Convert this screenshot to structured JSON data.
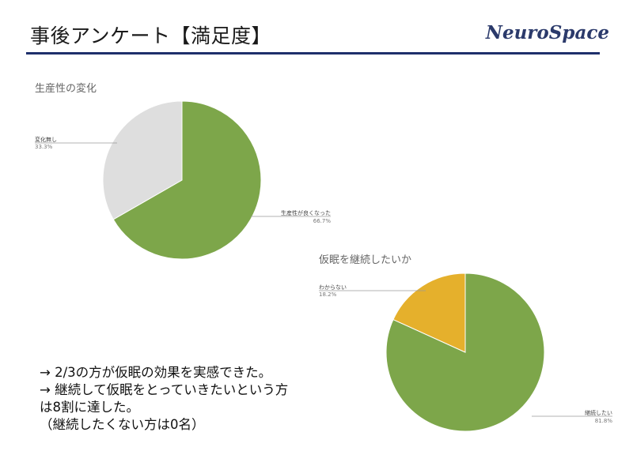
{
  "header": {
    "title": "事後アンケート【満足度】",
    "brand": "NeuroSpace"
  },
  "chart_data": [
    {
      "type": "pie",
      "title": "生産性の変化",
      "slices": [
        {
          "label": "生産性が良くなった",
          "value": 66.7,
          "pct_text": "66.7%",
          "color": "#7da64a"
        },
        {
          "label": "変化無し",
          "value": 33.3,
          "pct_text": "33.3%",
          "color": "#dedede"
        }
      ]
    },
    {
      "type": "pie",
      "title": "仮眠を継続したいか",
      "slices": [
        {
          "label": "継続したい",
          "value": 81.8,
          "pct_text": "81.8%",
          "color": "#7da64a"
        },
        {
          "label": "わからない",
          "value": 18.2,
          "pct_text": "18.2%",
          "color": "#e5b02c"
        }
      ]
    }
  ],
  "summary": {
    "lines": [
      "→ 2/3の方が仮眠の効果を実感できた。",
      "→ 継続して仮眠をとっていきたいという方",
      "は8割に達した。",
      "（継続したくない方は0名）"
    ]
  }
}
